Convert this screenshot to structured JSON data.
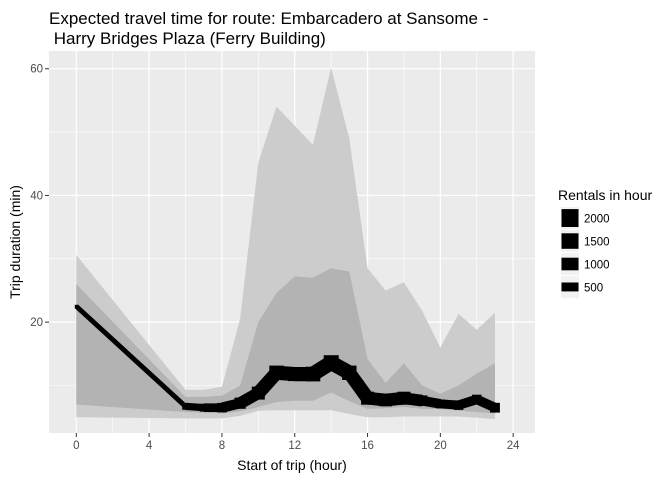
{
  "chart_data": {
    "type": "line",
    "title_lines": [
      "Expected travel time for route: Embarcadero at Sansome -",
      " Harry Bridges Plaza (Ferry Building)"
    ],
    "xlabel": "Start of trip (hour)",
    "ylabel": "Trip duration (min)",
    "xlim": [
      -1.5,
      25.2
    ],
    "ylim": [
      2.5,
      62.8
    ],
    "x_ticks": [
      0,
      4,
      8,
      12,
      16,
      20,
      24
    ],
    "y_ticks": [
      20,
      40,
      60
    ],
    "x_tick_labels": [
      "0",
      "4",
      "8",
      "12",
      "16",
      "20",
      "24"
    ],
    "y_tick_labels": [
      "20",
      "40",
      "60"
    ],
    "grid": true,
    "legend": {
      "title": "Rentals in hour",
      "placement": "right",
      "entries": [
        {
          "label": "2000",
          "size": 2000
        },
        {
          "label": "1500",
          "size": 1500
        },
        {
          "label": "1000",
          "size": 1000
        },
        {
          "label": "500",
          "size": 500
        }
      ]
    },
    "outer_band": {
      "x": [
        0,
        6,
        7,
        8,
        9,
        10,
        11,
        12,
        13,
        14,
        15,
        16,
        17,
        18,
        19,
        20,
        21,
        22,
        23
      ],
      "low": [
        5.0,
        4.8,
        4.8,
        4.8,
        5.2,
        6.0,
        6.1,
        6.1,
        6.1,
        6.1,
        5.5,
        5.0,
        5.0,
        5.1,
        5.1,
        5.1,
        5.1,
        4.9,
        4.7
      ],
      "high": [
        30.6,
        9.3,
        9.3,
        9.8,
        20.5,
        45.2,
        54.0,
        51.0,
        48.0,
        60.2,
        49.0,
        28.5,
        25.0,
        26.3,
        21.8,
        16.0,
        21.3,
        18.8,
        21.5
      ]
    },
    "inner_band": {
      "x": [
        0,
        6,
        7,
        8,
        9,
        10,
        11,
        12,
        13,
        14,
        15,
        16,
        17,
        18,
        19,
        20,
        21,
        22,
        23
      ],
      "low": [
        7.0,
        5.8,
        5.7,
        5.6,
        5.9,
        6.6,
        7.4,
        7.6,
        7.6,
        8.9,
        7.5,
        6.3,
        6.4,
        6.6,
        6.3,
        6.3,
        6.0,
        5.8,
        5.6
      ],
      "high": [
        26.0,
        8.2,
        8.2,
        8.4,
        10.0,
        20.0,
        24.6,
        27.2,
        27.0,
        28.5,
        28.0,
        14.2,
        10.4,
        13.5,
        10.0,
        8.7,
        10.0,
        11.9,
        13.5
      ]
    },
    "median_line": {
      "x": [
        0,
        6,
        7,
        8,
        9,
        10,
        11,
        12,
        13,
        14,
        15,
        16,
        17,
        18,
        19,
        20,
        21,
        22,
        23
      ],
      "y": [
        22.5,
        6.7,
        6.5,
        6.5,
        7.2,
        8.8,
        12.0,
        11.8,
        11.8,
        13.6,
        12.0,
        8.0,
        7.7,
        8.0,
        7.6,
        7.1,
        6.9,
        7.8,
        6.5
      ],
      "rentals": [
        60,
        280,
        380,
        560,
        780,
        1050,
        1300,
        1200,
        1350,
        1400,
        1300,
        1050,
        1000,
        1050,
        700,
        480,
        560,
        560,
        600
      ]
    },
    "colors": {
      "panel": "#ebebeb",
      "grid": "#ffffff",
      "outer_band": "#cccccc",
      "inner_band": "#b3b3b3",
      "line": "#000000",
      "tick_label": "#4d4d4d"
    }
  }
}
